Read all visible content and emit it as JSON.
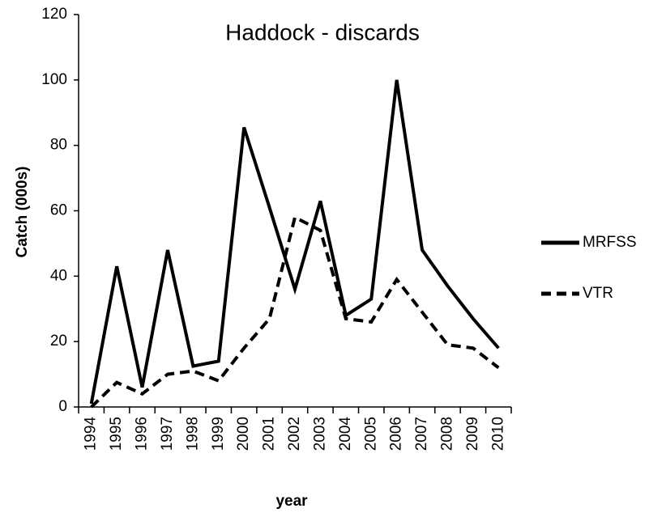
{
  "chart_data": {
    "type": "line",
    "title": "Haddock - discards",
    "x_label": "year",
    "y_label": "Catch (000s)",
    "categories": [
      "1994",
      "1995",
      "1996",
      "1997",
      "1998",
      "1999",
      "2000",
      "2001",
      "2002",
      "2003",
      "2004",
      "2005",
      "2006",
      "2007",
      "2008",
      "2009",
      "2010"
    ],
    "series": [
      {
        "name": "MRFSS",
        "color": "#000000",
        "dash": "solid",
        "values": [
          1,
          43,
          6,
          48,
          12.5,
          14,
          85.5,
          61,
          36,
          63,
          28,
          33,
          100,
          48,
          37,
          27,
          18
        ]
      },
      {
        "name": "VTR",
        "color": "#000000",
        "dash": "dashed",
        "values": [
          0,
          7.5,
          4,
          10,
          11,
          8,
          18,
          27,
          58,
          54,
          27,
          26,
          39,
          29,
          19,
          18,
          12
        ]
      }
    ],
    "ylim": [
      0,
      120
    ],
    "yticks": [
      0,
      20,
      40,
      60,
      80,
      100,
      120
    ],
    "grid": false,
    "legend": "right"
  }
}
